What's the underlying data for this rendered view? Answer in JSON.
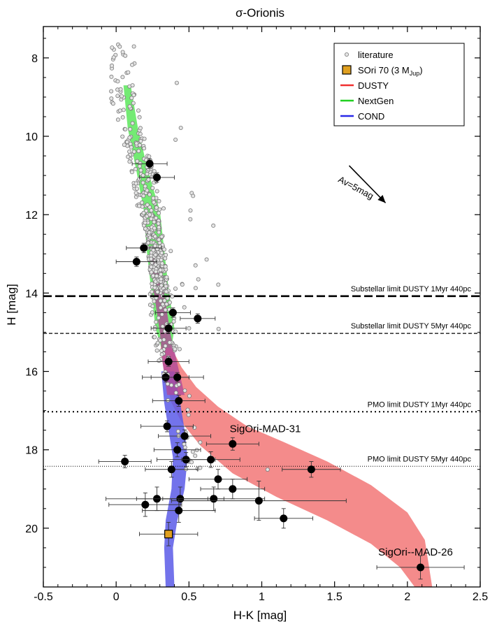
{
  "chart_data": {
    "type": "scatter",
    "title": "σ-Orionis",
    "xlabel": "H-K [mag]",
    "ylabel": "H [mag]",
    "xlim": [
      -0.5,
      2.5
    ],
    "ylim": [
      7.2,
      21.5
    ],
    "y_inverted": true,
    "grid": false,
    "legend_position": "top-right",
    "x_ticks": [
      -0.5,
      0,
      0.5,
      1,
      1.5,
      2,
      2.5
    ],
    "x_tick_labels": [
      "-0.5",
      "0",
      "0.5",
      "1",
      "1.5",
      "2",
      "2.5"
    ],
    "y_ticks": [
      8,
      10,
      12,
      14,
      16,
      18,
      20
    ],
    "y_tick_labels": [
      "8",
      "10",
      "12",
      "14",
      "16",
      "18",
      "20"
    ],
    "legend": [
      {
        "label": "literature",
        "kind": "marker",
        "color": "#9a9a9a"
      },
      {
        "label": "SOri 70 (3 M",
        "sub": "Jup",
        "suffix": ")",
        "kind": "square",
        "color": "#e0a020"
      },
      {
        "label": "DUSTY",
        "kind": "line",
        "color": "#f03030"
      },
      {
        "label": "NextGen",
        "kind": "line",
        "color": "#20d020"
      },
      {
        "label": "COND",
        "kind": "line",
        "color": "#2828e8"
      }
    ],
    "limits": [
      {
        "label": "Substellar limit DUSTY 1Myr 440pc",
        "y": 14.08,
        "style": "thick-dash"
      },
      {
        "label": "Substellar limit DUSTY 5Myr 440pc",
        "y": 15.03,
        "style": "dash"
      },
      {
        "label": "PMO limit DUSTY 1Myr 440pc",
        "y": 17.03,
        "style": "dot"
      },
      {
        "label": "PMO limit DUSTY 5Myr 440pc",
        "y": 18.42,
        "style": "fine-dot"
      }
    ],
    "annotations": [
      {
        "text": "SigOri-MAD-31",
        "x": 0.78,
        "y": 17.55
      },
      {
        "text": "SigOri--MAD-26",
        "x": 1.8,
        "y": 20.7
      },
      {
        "text": "Av=5mag",
        "x": 1.52,
        "y": 11.15,
        "angle": 28
      }
    ],
    "extinction_arrow": {
      "x0": 1.6,
      "y0": 10.75,
      "x1": 1.85,
      "y1": 11.7
    },
    "model_bands": {
      "DUSTY": {
        "color": "#f06464",
        "left": [
          [
            0.3,
            14.9
          ],
          [
            0.31,
            15.6
          ],
          [
            0.34,
            16.2
          ],
          [
            0.38,
            16.8
          ],
          [
            0.45,
            17.3
          ],
          [
            0.58,
            17.9
          ],
          [
            0.8,
            18.6
          ],
          [
            1.1,
            19.2
          ],
          [
            1.45,
            19.8
          ],
          [
            1.75,
            20.4
          ],
          [
            1.95,
            21.0
          ],
          [
            2.05,
            21.5
          ]
        ],
        "right": [
          [
            0.33,
            14.9
          ],
          [
            0.38,
            15.4
          ],
          [
            0.45,
            15.9
          ],
          [
            0.55,
            16.4
          ],
          [
            0.7,
            16.9
          ],
          [
            0.9,
            17.4
          ],
          [
            1.15,
            17.8
          ],
          [
            1.45,
            18.3
          ],
          [
            1.75,
            18.9
          ],
          [
            2.0,
            19.6
          ],
          [
            2.12,
            20.3
          ],
          [
            2.17,
            21.5
          ]
        ]
      },
      "NextGen": {
        "color": "#5ce65c",
        "left": [
          [
            0.05,
            8.7
          ],
          [
            0.08,
            9.8
          ],
          [
            0.14,
            10.9
          ],
          [
            0.19,
            11.9
          ],
          [
            0.21,
            12.9
          ],
          [
            0.24,
            13.9
          ],
          [
            0.27,
            14.9
          ],
          [
            0.31,
            15.4
          ]
        ],
        "right": [
          [
            0.1,
            8.7
          ],
          [
            0.15,
            9.8
          ],
          [
            0.22,
            10.9
          ],
          [
            0.3,
            11.9
          ],
          [
            0.33,
            12.9
          ],
          [
            0.36,
            13.9
          ],
          [
            0.4,
            14.9
          ],
          [
            0.38,
            15.4
          ]
        ]
      },
      "COND": {
        "color": "#5a5ae8",
        "left": [
          [
            0.31,
            16.0
          ],
          [
            0.33,
            16.8
          ],
          [
            0.36,
            17.5
          ],
          [
            0.39,
            18.2
          ],
          [
            0.38,
            19.0
          ],
          [
            0.34,
            19.8
          ],
          [
            0.33,
            20.5
          ],
          [
            0.34,
            21.5
          ]
        ],
        "right": [
          [
            0.4,
            16.0
          ],
          [
            0.44,
            16.8
          ],
          [
            0.47,
            17.5
          ],
          [
            0.49,
            18.2
          ],
          [
            0.47,
            19.0
          ],
          [
            0.42,
            19.8
          ],
          [
            0.39,
            20.5
          ],
          [
            0.4,
            21.5
          ]
        ]
      }
    },
    "overlap": {
      "color": "#b04a9a",
      "left": [
        [
          0.24,
          13.0
        ],
        [
          0.26,
          14.0
        ],
        [
          0.3,
          15.0
        ],
        [
          0.32,
          15.8
        ],
        [
          0.35,
          16.6
        ]
      ],
      "right": [
        [
          0.31,
          13.0
        ],
        [
          0.33,
          14.0
        ],
        [
          0.37,
          15.0
        ],
        [
          0.42,
          15.8
        ],
        [
          0.47,
          16.6
        ]
      ]
    },
    "observed": [
      {
        "x": 0.23,
        "y": 10.7,
        "xerr": 0.12,
        "yerr": 0.12
      },
      {
        "x": 0.28,
        "y": 11.05,
        "xerr": 0.12,
        "yerr": 0.12
      },
      {
        "x": 0.19,
        "y": 12.85,
        "xerr": 0.12,
        "yerr": 0.12
      },
      {
        "x": 0.14,
        "y": 13.2,
        "xerr": 0.14,
        "yerr": 0.12
      },
      {
        "x": 0.39,
        "y": 14.5,
        "xerr": 0.12,
        "yerr": 0.12
      },
      {
        "x": 0.56,
        "y": 14.65,
        "xerr": 0.12,
        "yerr": 0.12
      },
      {
        "x": 0.36,
        "y": 14.9,
        "xerr": 0.12,
        "yerr": 0.12
      },
      {
        "x": 0.36,
        "y": 15.75,
        "xerr": 0.14,
        "yerr": 0.12
      },
      {
        "x": 0.34,
        "y": 16.15,
        "xerr": 0.16,
        "yerr": 0.12
      },
      {
        "x": 0.42,
        "y": 16.15,
        "xerr": 0.18,
        "yerr": 0.12
      },
      {
        "x": 0.43,
        "y": 16.75,
        "xerr": 0.18,
        "yerr": 0.14
      },
      {
        "x": 0.35,
        "y": 17.4,
        "xerr": 0.18,
        "yerr": 0.14
      },
      {
        "x": 0.47,
        "y": 17.65,
        "xerr": 0.18,
        "yerr": 0.16
      },
      {
        "x": 0.8,
        "y": 17.85,
        "xerr": 0.18,
        "yerr": 0.16
      },
      {
        "x": 0.42,
        "y": 18.0,
        "xerr": 0.16,
        "yerr": 0.18
      },
      {
        "x": 0.48,
        "y": 18.25,
        "xerr": 0.2,
        "yerr": 0.18
      },
      {
        "x": 0.65,
        "y": 18.25,
        "xerr": 0.2,
        "yerr": 0.2
      },
      {
        "x": 0.06,
        "y": 18.3,
        "xerr": 0.18,
        "yerr": 0.16
      },
      {
        "x": 0.38,
        "y": 18.5,
        "xerr": 0.18,
        "yerr": 0.2
      },
      {
        "x": 1.34,
        "y": 18.5,
        "xerr": 0.2,
        "yerr": 0.2
      },
      {
        "x": 0.7,
        "y": 18.75,
        "xerr": 0.2,
        "yerr": 0.25
      },
      {
        "x": 0.8,
        "y": 19.0,
        "xerr": 0.22,
        "yerr": 0.25
      },
      {
        "x": 0.28,
        "y": 19.25,
        "xerr": 0.35,
        "yerr": 0.3
      },
      {
        "x": 0.44,
        "y": 19.25,
        "xerr": 0.3,
        "yerr": 0.3
      },
      {
        "x": 0.67,
        "y": 19.25,
        "xerr": 0.35,
        "yerr": 0.3
      },
      {
        "x": 0.98,
        "y": 19.3,
        "xerr": 0.6,
        "yerr": 0.5
      },
      {
        "x": 0.2,
        "y": 19.4,
        "xerr": 0.25,
        "yerr": 0.3
      },
      {
        "x": 0.43,
        "y": 19.55,
        "xerr": 0.25,
        "yerr": 0.3
      },
      {
        "x": 1.15,
        "y": 19.75,
        "xerr": 0.2,
        "yerr": 0.25
      },
      {
        "x": 2.09,
        "y": 21.0,
        "xerr": 0.3,
        "yerr": 0.3
      }
    ],
    "sori70": {
      "x": 0.36,
      "y": 20.15,
      "xerr": 0.2,
      "yerr": 0.3
    }
  }
}
